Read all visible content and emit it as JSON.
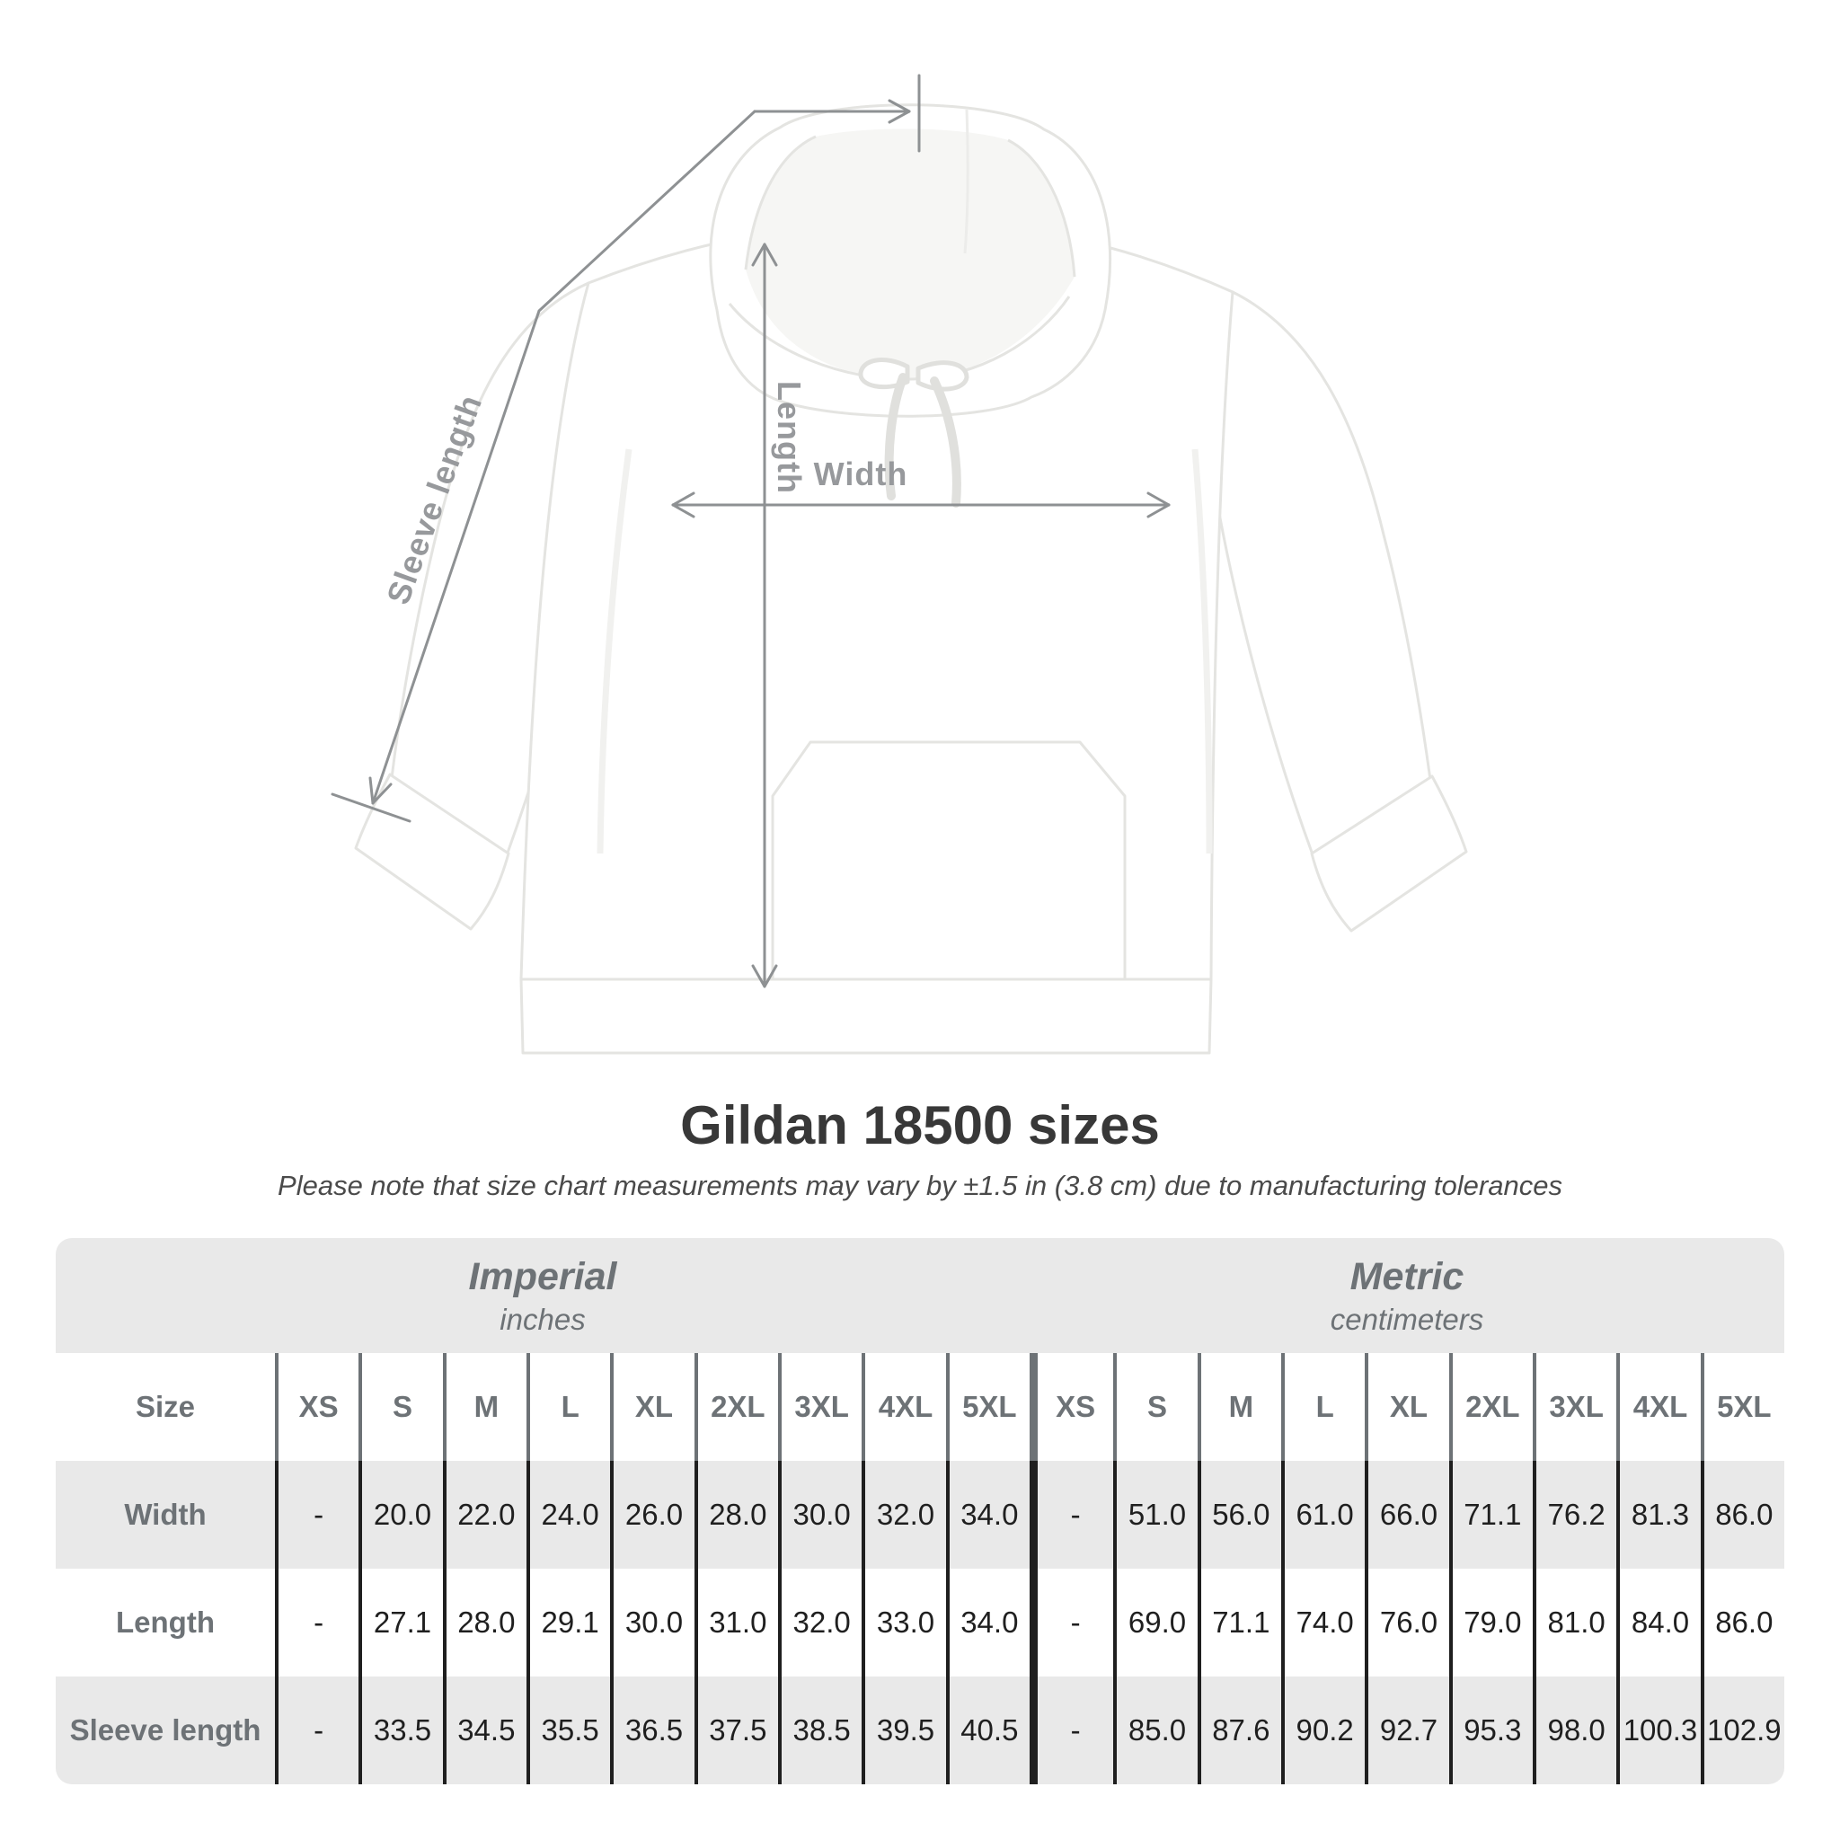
{
  "title": "Gildan 18500 sizes",
  "subtitle": "Please note that size chart measurements may vary by ±1.5 in (3.8 cm) due to manufacturing tolerances",
  "diagram": {
    "labels": {
      "width": "Width",
      "length": "Length",
      "sleeve": "Sleeve length"
    },
    "line_color": "#8e9193",
    "label_color": "#97999c"
  },
  "table": {
    "header_bg": "#e9e9e9",
    "alt_row_bg": "#e9e9e9",
    "size_label": "Size",
    "unit_groups": [
      {
        "name": "Imperial",
        "unit": "inches"
      },
      {
        "name": "Metric",
        "unit": "centimeters"
      }
    ],
    "sizes": [
      "XS",
      "S",
      "M",
      "L",
      "XL",
      "2XL",
      "3XL",
      "4XL",
      "5XL"
    ],
    "rows": [
      {
        "label": "Width",
        "imperial": [
          "-",
          "20.0",
          "22.0",
          "24.0",
          "26.0",
          "28.0",
          "30.0",
          "32.0",
          "34.0"
        ],
        "metric": [
          "-",
          "51.0",
          "56.0",
          "61.0",
          "66.0",
          "71.1",
          "76.2",
          "81.3",
          "86.0"
        ]
      },
      {
        "label": "Length",
        "imperial": [
          "-",
          "27.1",
          "28.0",
          "29.1",
          "30.0",
          "31.0",
          "32.0",
          "33.0",
          "34.0"
        ],
        "metric": [
          "-",
          "69.0",
          "71.1",
          "74.0",
          "76.0",
          "79.0",
          "81.0",
          "84.0",
          "86.0"
        ]
      },
      {
        "label": "Sleeve length",
        "imperial": [
          "-",
          "33.5",
          "34.5",
          "35.5",
          "36.5",
          "37.5",
          "38.5",
          "39.5",
          "40.5"
        ],
        "metric": [
          "-",
          "85.0",
          "87.6",
          "90.2",
          "92.7",
          "95.3",
          "98.0",
          "100.3",
          "102.9"
        ]
      }
    ]
  },
  "chart_data": {
    "type": "table",
    "title": "Gildan 18500 sizes",
    "categories": [
      "XS",
      "S",
      "M",
      "L",
      "XL",
      "2XL",
      "3XL",
      "4XL",
      "5XL"
    ],
    "series": [
      {
        "name": "Width (inches)",
        "values": [
          null,
          20.0,
          22.0,
          24.0,
          26.0,
          28.0,
          30.0,
          32.0,
          34.0
        ]
      },
      {
        "name": "Length (inches)",
        "values": [
          null,
          27.1,
          28.0,
          29.1,
          30.0,
          31.0,
          32.0,
          33.0,
          34.0
        ]
      },
      {
        "name": "Sleeve length (inches)",
        "values": [
          null,
          33.5,
          34.5,
          35.5,
          36.5,
          37.5,
          38.5,
          39.5,
          40.5
        ]
      },
      {
        "name": "Width (cm)",
        "values": [
          null,
          51.0,
          56.0,
          61.0,
          66.0,
          71.1,
          76.2,
          81.3,
          86.0
        ]
      },
      {
        "name": "Length (cm)",
        "values": [
          null,
          69.0,
          71.1,
          74.0,
          76.0,
          79.0,
          81.0,
          84.0,
          86.0
        ]
      },
      {
        "name": "Sleeve length (cm)",
        "values": [
          null,
          85.0,
          87.6,
          90.2,
          92.7,
          95.3,
          98.0,
          100.3,
          102.9
        ]
      }
    ]
  }
}
